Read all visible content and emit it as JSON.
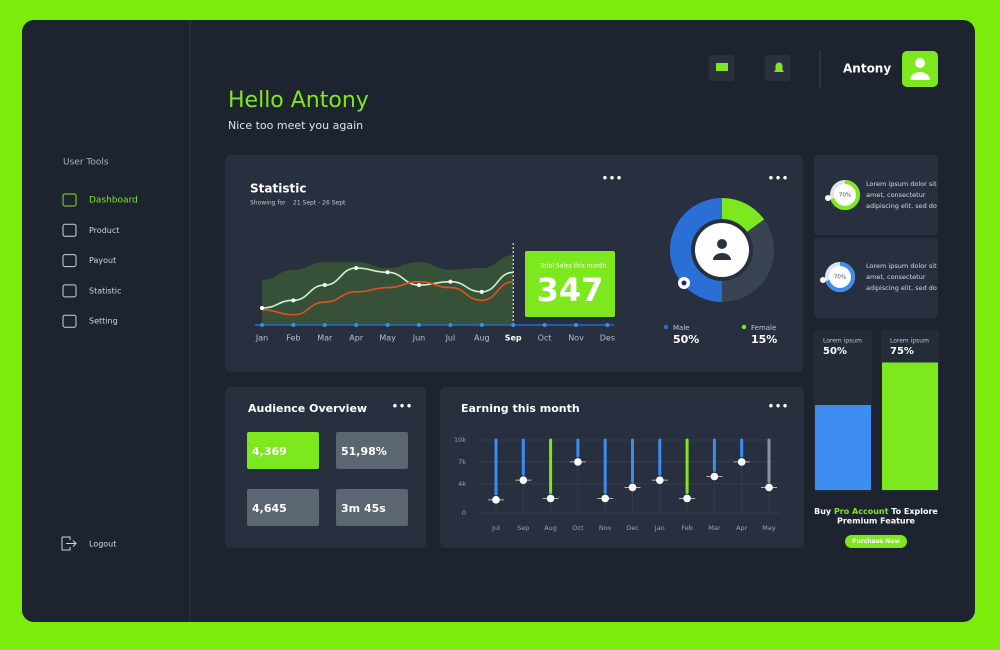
{
  "sidebar": {
    "section": "User Tools",
    "menu": [
      "Dashboard",
      "Product",
      "Payout",
      "Statistic",
      "Setting"
    ],
    "active": 0,
    "logout": "Logout"
  },
  "header": {
    "user": "Antony",
    "greeting": "Hello Antony",
    "subtitle": "Nice too meet you again"
  },
  "statistic": {
    "type": "line",
    "title": "Statistic",
    "range_label": "Showing for",
    "range": "21 Sept - 26 Sept",
    "categories": [
      "Jan",
      "Feb",
      "Mar",
      "Apr",
      "May",
      "Jun",
      "Jul",
      "Aug",
      "Sep",
      "Oct",
      "Nov",
      "Des"
    ],
    "highlight": 8,
    "ylim": [
      0,
      100
    ],
    "area": {
      "color": "#3b5a36",
      "values": [
        53,
        65,
        74,
        74,
        67,
        74,
        65,
        67,
        82,
        null,
        null,
        null
      ]
    },
    "series": [
      {
        "color": "#c8f5d0",
        "values": [
          20,
          29,
          47,
          67,
          62,
          47,
          51,
          39,
          62,
          null,
          null,
          null
        ]
      },
      {
        "color": "#e4501c",
        "values": [
          18,
          12,
          27,
          39,
          44,
          51,
          44,
          29,
          51,
          null,
          null,
          null
        ]
      }
    ],
    "callout_label": "Total Sales this month",
    "callout_value": 347
  },
  "gender": {
    "type": "pie",
    "categories": [
      "Male",
      "Female"
    ],
    "values": [
      50,
      15
    ],
    "value_labels": [
      "50%",
      "15%"
    ],
    "colors": [
      "#2a6fd6",
      "#7ee81e"
    ]
  },
  "info_cards": [
    {
      "value": 70,
      "value_label": "70%",
      "color": "#7ee81e",
      "lines": [
        "Lorem ipsum dolor sit",
        "amet, consectetur",
        "adipiscing elit, sed do"
      ]
    },
    {
      "value": 70,
      "value_label": "70%",
      "color": "#3d8cf0",
      "lines": [
        "Lorem ipsum dolor sit",
        "amet, consectetur",
        "adipiscing elit, sed do"
      ]
    }
  ],
  "level_bars": {
    "type": "bar",
    "ylim": [
      0,
      100
    ],
    "items": [
      {
        "label": "Lorem ipsum",
        "value": 50,
        "value_label": "50%",
        "color": "#3d8cf0"
      },
      {
        "label": "Lorem ipsum",
        "value": 75,
        "value_label": "75%",
        "color": "#7ee81e"
      }
    ]
  },
  "promo": {
    "pre": "Buy ",
    "highlight": "Pro Account",
    "post": " To Explore",
    "line2": "Premium Feature",
    "button": "Purchase New"
  },
  "audience": {
    "title": "Audience Overview",
    "tiles": [
      "4,369",
      "51,98%",
      "4,645",
      "3m 45s"
    ]
  },
  "earning": {
    "type": "dot",
    "title": "Earning this month",
    "categories": [
      "Jul",
      "Sep",
      "Aug",
      "Oct",
      "Nov",
      "Dec",
      "Jan",
      "Feb",
      "Mar",
      "Apr",
      "May"
    ],
    "values": [
      1.8,
      4.5,
      2,
      7,
      2,
      3.5,
      4.5,
      2,
      5,
      7,
      3.5
    ],
    "colors": [
      "#3d8cf0",
      "#3d8cf0",
      "#7ee81e",
      "#3d8cf0",
      "#3d8cf0",
      "#3d8cf0",
      "#3d8cf0",
      "#7ee81e",
      "#3d8cf0",
      "#3d8cf0",
      "#8a93a3"
    ],
    "ylim": [
      0,
      10
    ],
    "yticks": [
      {
        "value": 10,
        "label": "10k"
      },
      {
        "value": 7,
        "label": "7k"
      },
      {
        "value": 4,
        "label": "4k"
      },
      0
    ]
  }
}
